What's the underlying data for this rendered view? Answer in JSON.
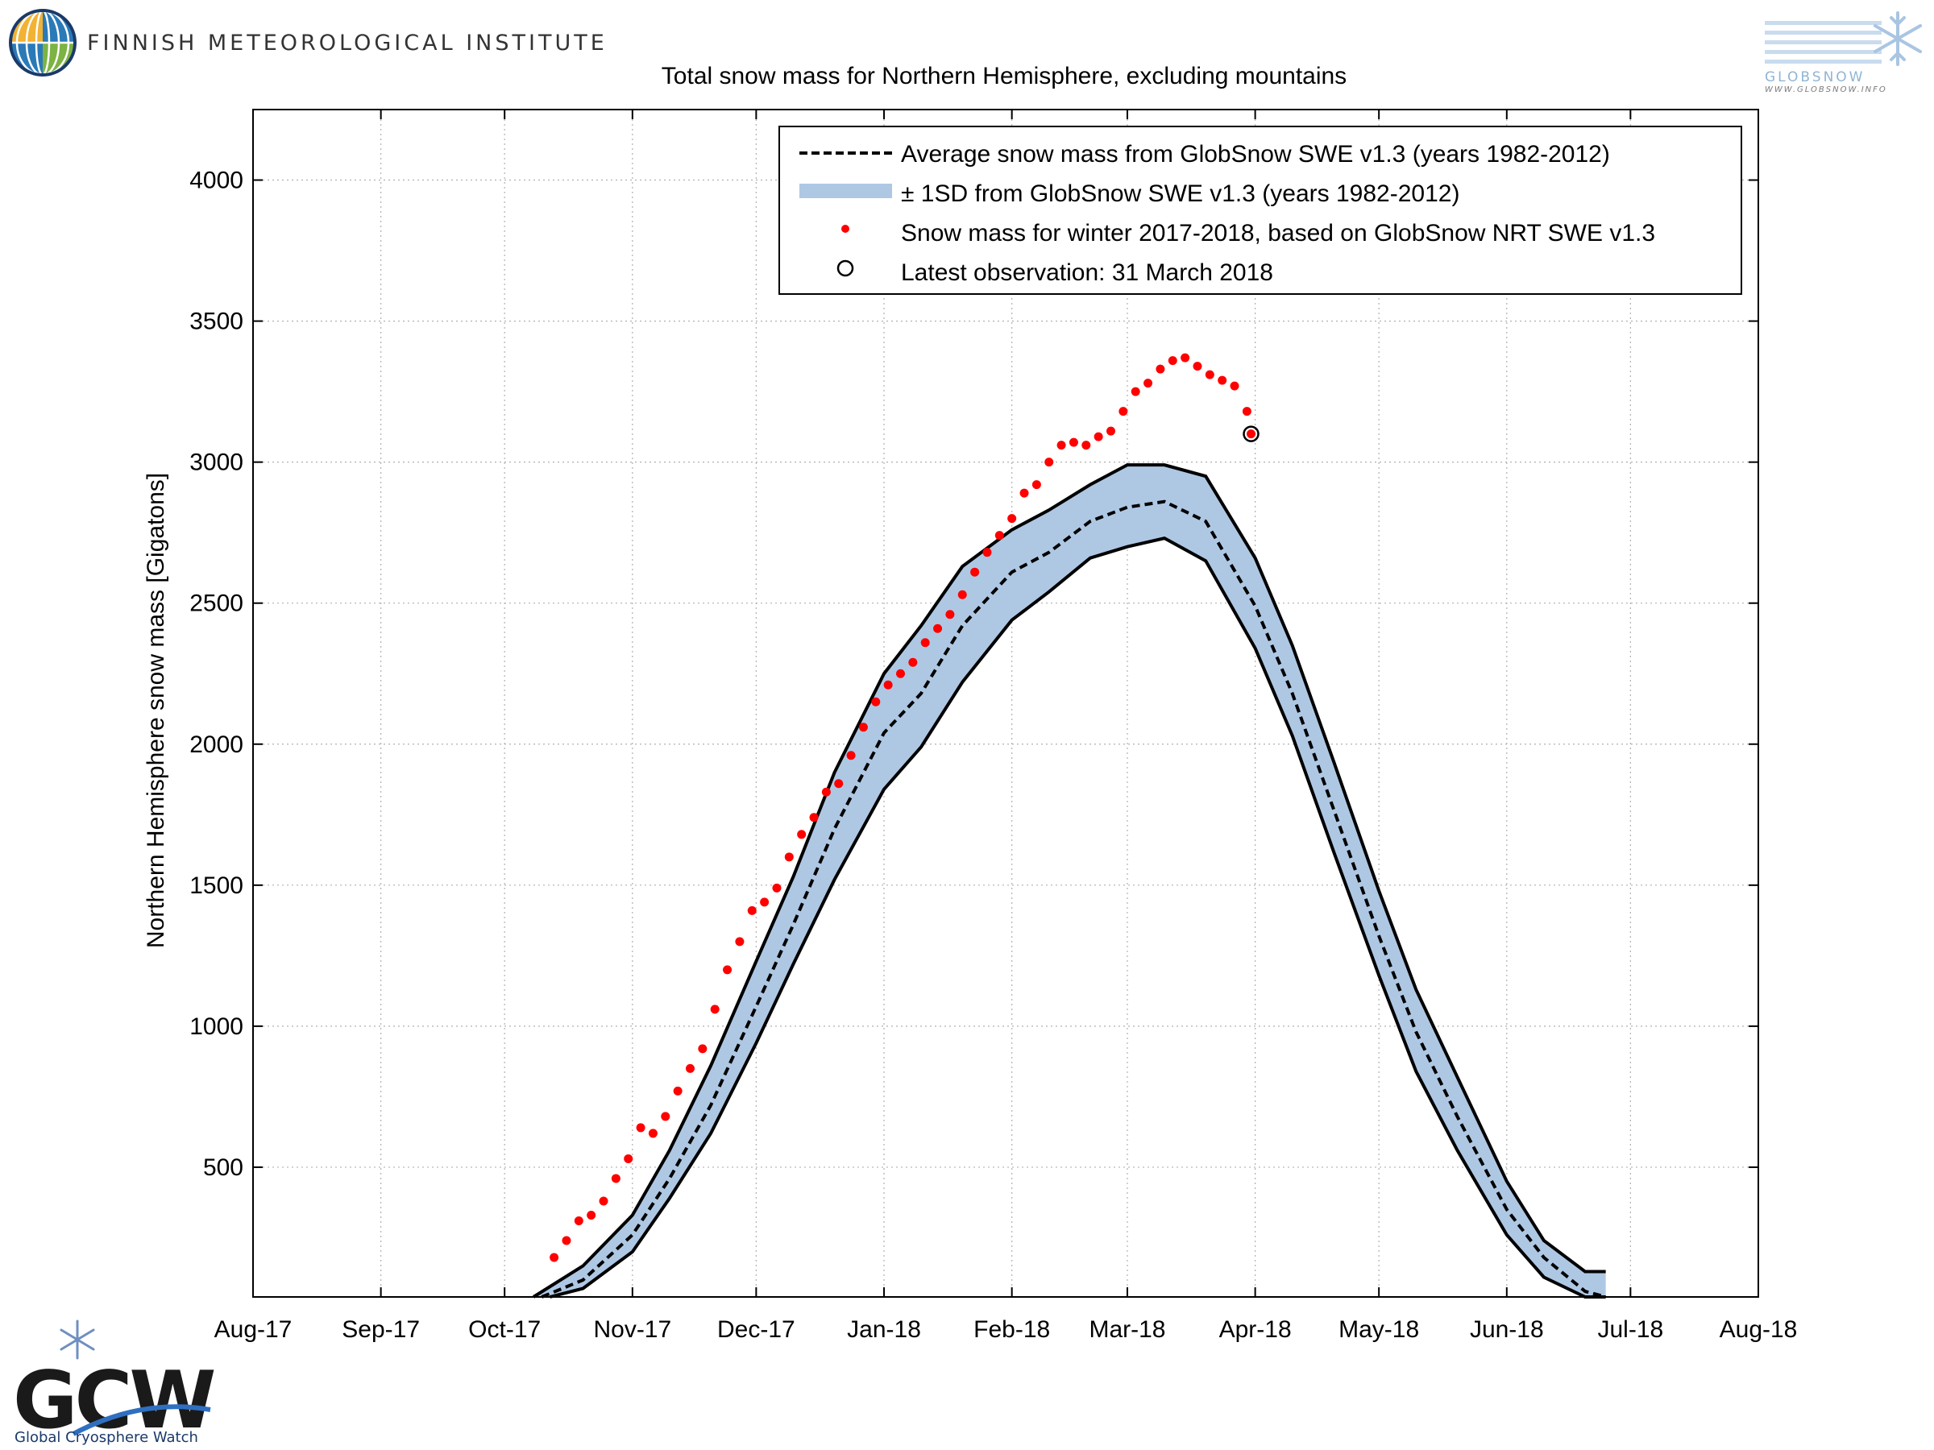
{
  "header": {
    "org_name": "FINNISH METEOROLOGICAL INSTITUTE"
  },
  "logos": {
    "globsnow_name": "GLOBSNOW",
    "globsnow_url": "WWW.GLOBSNOW.INFO",
    "gcw_name": "GCW",
    "gcw_full": "Global Cryosphere Watch"
  },
  "colors": {
    "band": "#aec8e4",
    "band_edge": "#000000",
    "observations": "#ff0000",
    "axis": "#000000",
    "grid": "#b0b0b0"
  },
  "chart_data": {
    "type": "line",
    "title": "Total snow mass for Northern Hemisphere, excluding mountains",
    "xlabel": "",
    "ylabel": "Northern Hemisphere snow mass [Gigatons]",
    "x_range": [
      "2017-08-01",
      "2018-08-01"
    ],
    "ylim": [
      40,
      4250
    ],
    "grid": true,
    "legend_position": "top-right",
    "x_ticks": [
      {
        "date": "2017-08-01",
        "label": "Aug-17"
      },
      {
        "date": "2017-09-01",
        "label": "Sep-17"
      },
      {
        "date": "2017-10-01",
        "label": "Oct-17"
      },
      {
        "date": "2017-11-01",
        "label": "Nov-17"
      },
      {
        "date": "2017-12-01",
        "label": "Dec-17"
      },
      {
        "date": "2018-01-01",
        "label": "Jan-18"
      },
      {
        "date": "2018-02-01",
        "label": "Feb-18"
      },
      {
        "date": "2018-03-01",
        "label": "Mar-18"
      },
      {
        "date": "2018-04-01",
        "label": "Apr-18"
      },
      {
        "date": "2018-05-01",
        "label": "May-18"
      },
      {
        "date": "2018-06-01",
        "label": "Jun-18"
      },
      {
        "date": "2018-07-01",
        "label": "Jul-18"
      },
      {
        "date": "2018-08-01",
        "label": "Aug-18"
      }
    ],
    "y_ticks": [
      500,
      1000,
      1500,
      2000,
      2500,
      3000,
      3500,
      4000
    ],
    "legend": [
      {
        "key": "mean",
        "label": "Average snow mass from GlobSnow SWE v1.3 (years 1982-2012)"
      },
      {
        "key": "band",
        "label": "± 1SD from GlobSnow SWE v1.3 (years 1982-2012)"
      },
      {
        "key": "obs",
        "label": "Snow mass for winter 2017-2018, based on GlobSnow NRT SWE v1.3"
      },
      {
        "key": "latest",
        "label": "Latest observation: 31 March 2018"
      }
    ],
    "series": [
      {
        "name": "Average snow mass from GlobSnow SWE v1.3 (years 1982-2012)",
        "style": "dashed",
        "x": [
          "2017-10-10",
          "2017-10-20",
          "2017-11-01",
          "2017-11-10",
          "2017-11-20",
          "2017-12-01",
          "2017-12-10",
          "2017-12-20",
          "2018-01-01",
          "2018-01-10",
          "2018-01-20",
          "2018-02-01",
          "2018-02-10",
          "2018-02-20",
          "2018-03-01",
          "2018-03-10",
          "2018-03-20",
          "2018-04-01",
          "2018-04-10",
          "2018-04-20",
          "2018-05-01",
          "2018-05-10",
          "2018-05-20",
          "2018-06-01",
          "2018-06-10",
          "2018-06-20",
          "2018-06-25"
        ],
        "values": [
          40,
          100,
          260,
          460,
          720,
          1070,
          1360,
          1700,
          2040,
          2180,
          2420,
          2610,
          2680,
          2790,
          2840,
          2860,
          2790,
          2490,
          2180,
          1770,
          1320,
          980,
          680,
          350,
          180,
          60,
          40
        ]
      },
      {
        "name": "± 1SD upper",
        "x": [
          "2017-10-08",
          "2017-10-20",
          "2017-11-01",
          "2017-11-10",
          "2017-11-20",
          "2017-12-01",
          "2017-12-10",
          "2017-12-20",
          "2018-01-01",
          "2018-01-10",
          "2018-01-20",
          "2018-02-01",
          "2018-02-10",
          "2018-02-20",
          "2018-03-01",
          "2018-03-10",
          "2018-03-20",
          "2018-04-01",
          "2018-04-10",
          "2018-04-20",
          "2018-05-01",
          "2018-05-10",
          "2018-05-20",
          "2018-06-01",
          "2018-06-10",
          "2018-06-20",
          "2018-06-25"
        ],
        "values": [
          40,
          150,
          330,
          560,
          860,
          1230,
          1530,
          1900,
          2250,
          2420,
          2630,
          2760,
          2830,
          2920,
          2990,
          2990,
          2950,
          2660,
          2350,
          1940,
          1480,
          1130,
          820,
          450,
          240,
          130,
          130
        ]
      },
      {
        "name": "± 1SD lower",
        "x": [
          "2017-10-12",
          "2017-10-20",
          "2017-11-01",
          "2017-11-10",
          "2017-11-20",
          "2017-12-01",
          "2017-12-10",
          "2017-12-20",
          "2018-01-01",
          "2018-01-10",
          "2018-01-20",
          "2018-02-01",
          "2018-02-10",
          "2018-02-20",
          "2018-03-01",
          "2018-03-10",
          "2018-03-20",
          "2018-04-01",
          "2018-04-10",
          "2018-04-20",
          "2018-05-01",
          "2018-05-10",
          "2018-05-20",
          "2018-06-01",
          "2018-06-10",
          "2018-06-20",
          "2018-06-25"
        ],
        "values": [
          40,
          70,
          200,
          390,
          620,
          940,
          1220,
          1520,
          1840,
          1990,
          2220,
          2440,
          2540,
          2660,
          2700,
          2730,
          2650,
          2340,
          2030,
          1620,
          1180,
          840,
          560,
          260,
          110,
          40,
          40
        ]
      },
      {
        "name": "Snow mass for winter 2017-2018, based on GlobSnow NRT SWE v1.3",
        "style": "points",
        "x": [
          "2017-10-13",
          "2017-10-16",
          "2017-10-19",
          "2017-10-22",
          "2017-10-25",
          "2017-10-28",
          "2017-10-31",
          "2017-11-03",
          "2017-11-06",
          "2017-11-09",
          "2017-11-12",
          "2017-11-15",
          "2017-11-18",
          "2017-11-21",
          "2017-11-24",
          "2017-11-27",
          "2017-11-30",
          "2017-12-03",
          "2017-12-06",
          "2017-12-09",
          "2017-12-12",
          "2017-12-15",
          "2017-12-18",
          "2017-12-21",
          "2017-12-24",
          "2017-12-27",
          "2017-12-30",
          "2018-01-02",
          "2018-01-05",
          "2018-01-08",
          "2018-01-11",
          "2018-01-14",
          "2018-01-17",
          "2018-01-20",
          "2018-01-23",
          "2018-01-26",
          "2018-01-29",
          "2018-02-01",
          "2018-02-04",
          "2018-02-07",
          "2018-02-10",
          "2018-02-13",
          "2018-02-16",
          "2018-02-19",
          "2018-02-22",
          "2018-02-25",
          "2018-02-28",
          "2018-03-03",
          "2018-03-06",
          "2018-03-09",
          "2018-03-12",
          "2018-03-15",
          "2018-03-18",
          "2018-03-21",
          "2018-03-24",
          "2018-03-27",
          "2018-03-30",
          "2018-03-31"
        ],
        "values": [
          180,
          240,
          310,
          330,
          380,
          460,
          530,
          640,
          620,
          680,
          770,
          850,
          920,
          1060,
          1200,
          1300,
          1410,
          1440,
          1490,
          1600,
          1680,
          1740,
          1830,
          1860,
          1960,
          2060,
          2150,
          2210,
          2250,
          2290,
          2360,
          2410,
          2460,
          2530,
          2610,
          2680,
          2740,
          2800,
          2890,
          2920,
          3000,
          3060,
          3070,
          3060,
          3090,
          3110,
          3180,
          3250,
          3280,
          3330,
          3360,
          3370,
          3340,
          3310,
          3290,
          3270,
          3180,
          3100
        ]
      }
    ],
    "latest_observation": {
      "x": "2018-03-31",
      "value": 3100
    }
  }
}
